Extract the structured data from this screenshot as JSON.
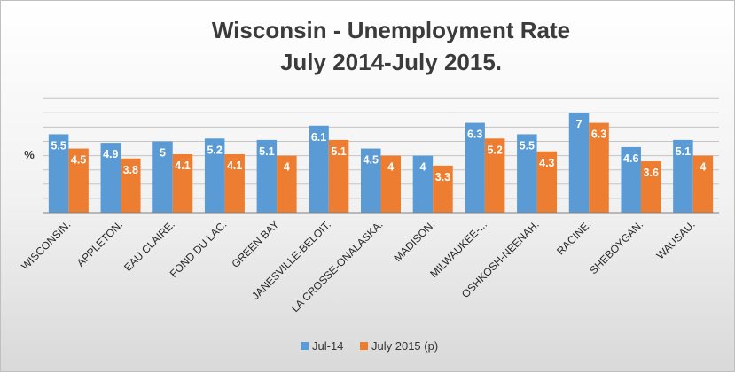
{
  "chart_data": {
    "type": "bar",
    "title": "Wisconsin - Unemployment Rate",
    "subtitle": "July 2014-July 2015.",
    "ylabel": "%",
    "xlabel": "",
    "ylim": [
      0,
      7
    ],
    "grid": true,
    "legend_position": "bottom",
    "categories": [
      "WISCONSIN.",
      "APPLETON.",
      "EAU CLAIRE.",
      "FOND DU LAC.",
      "GREEN BAY",
      "JANESVILLE-BELOIT.",
      "LA CROSSE-ONALASKA.",
      "MADISON.",
      "MILWAUKEE-...",
      "OSHKOSH-NEENAH.",
      "RACINE.",
      "SHEBOYGAN.",
      "WAUSAU."
    ],
    "series": [
      {
        "name": "Jul-14",
        "color": "#5b9bd5",
        "values": [
          5.5,
          4.9,
          5,
          5.2,
          5.1,
          6.1,
          4.5,
          4,
          6.3,
          5.5,
          7,
          4.6,
          5.1
        ]
      },
      {
        "name": "July 2015 (p)",
        "color": "#ed7d31",
        "values": [
          4.5,
          3.8,
          4.1,
          4.1,
          4,
          5.1,
          4,
          3.3,
          5.2,
          4.3,
          6.3,
          3.6,
          4
        ]
      }
    ]
  }
}
